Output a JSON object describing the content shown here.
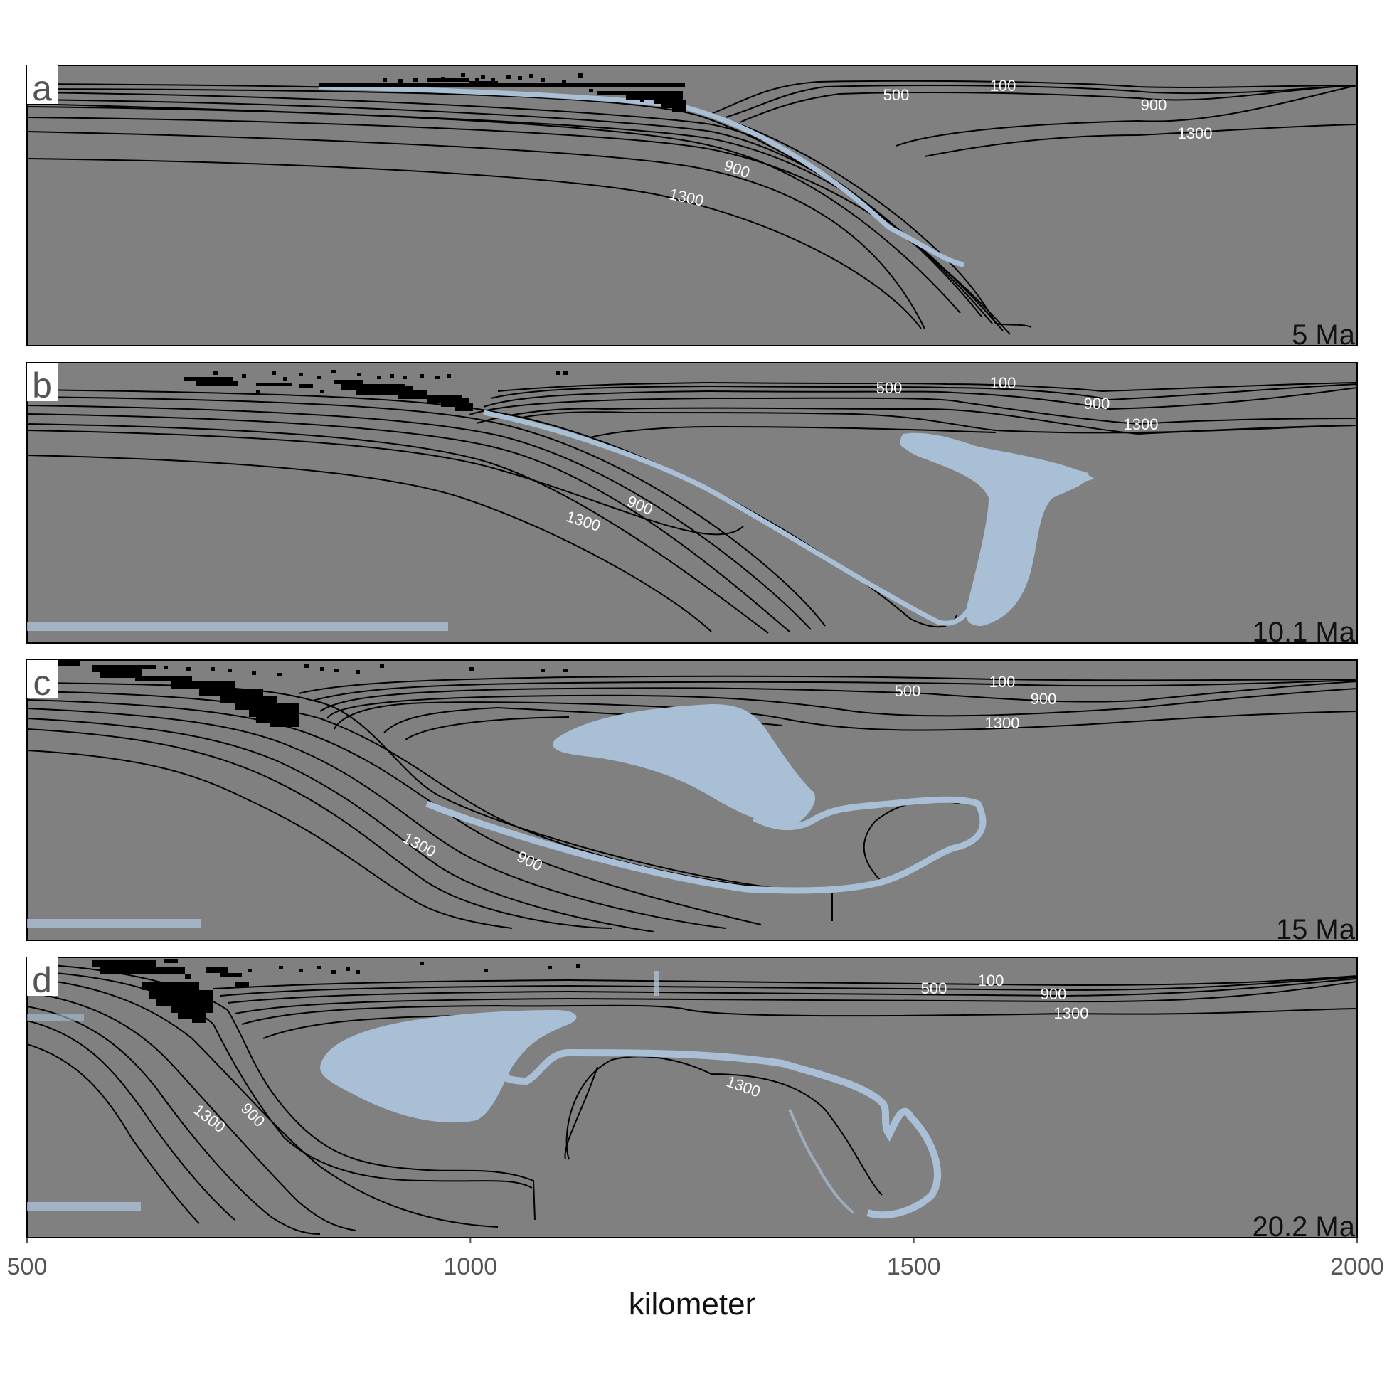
{
  "figure": {
    "xlabel": "kilometer",
    "x_ticks": [
      500,
      1000,
      1500,
      2000
    ],
    "x_range": [
      500,
      2000
    ],
    "colors": {
      "background": "#808080",
      "contour": "#000000",
      "contour_label": "#ffffff",
      "slab": "#a9bfd6",
      "particles": "#000000",
      "panel_letter_bg": "#ffffff"
    }
  },
  "panels": [
    {
      "letter": "a",
      "time": "5 Ma",
      "contour_labels": [
        {
          "text": "500",
          "x": 1479
        },
        {
          "text": "100",
          "x": 1599
        },
        {
          "text": "900",
          "x": 1771
        },
        {
          "text": "1300",
          "x": 1851
        },
        {
          "text": "900",
          "x": 1131
        },
        {
          "text": "1300",
          "x": 1064
        }
      ]
    },
    {
      "letter": "b",
      "time": "10.1 Ma",
      "contour_labels": [
        {
          "text": "500",
          "x": 1469
        },
        {
          "text": "100",
          "x": 1599
        },
        {
          "text": "900",
          "x": 1704
        },
        {
          "text": "1300",
          "x": 1788
        },
        {
          "text": "900",
          "x": 1004
        },
        {
          "text": "1300",
          "x": 935
        }
      ]
    },
    {
      "letter": "c",
      "time": "15 Ma",
      "contour_labels": [
        {
          "text": "500",
          "x": 1496
        },
        {
          "text": "100",
          "x": 1587
        },
        {
          "text": "900",
          "x": 1646
        },
        {
          "text": "1300",
          "x": 1599
        },
        {
          "text": "1300",
          "x": 740
        },
        {
          "text": "900",
          "x": 869
        }
      ]
    },
    {
      "letter": "d",
      "time": "20.2 Ma",
      "contour_labels": [
        {
          "text": "500",
          "x": 1526
        },
        {
          "text": "100",
          "x": 1586
        },
        {
          "text": "900",
          "x": 1659
        },
        {
          "text": "1300",
          "x": 1682
        },
        {
          "text": "1300",
          "x": 1317
        },
        {
          "text": "1300",
          "x": 506
        },
        {
          "text": "900",
          "x": 561
        }
      ]
    }
  ]
}
